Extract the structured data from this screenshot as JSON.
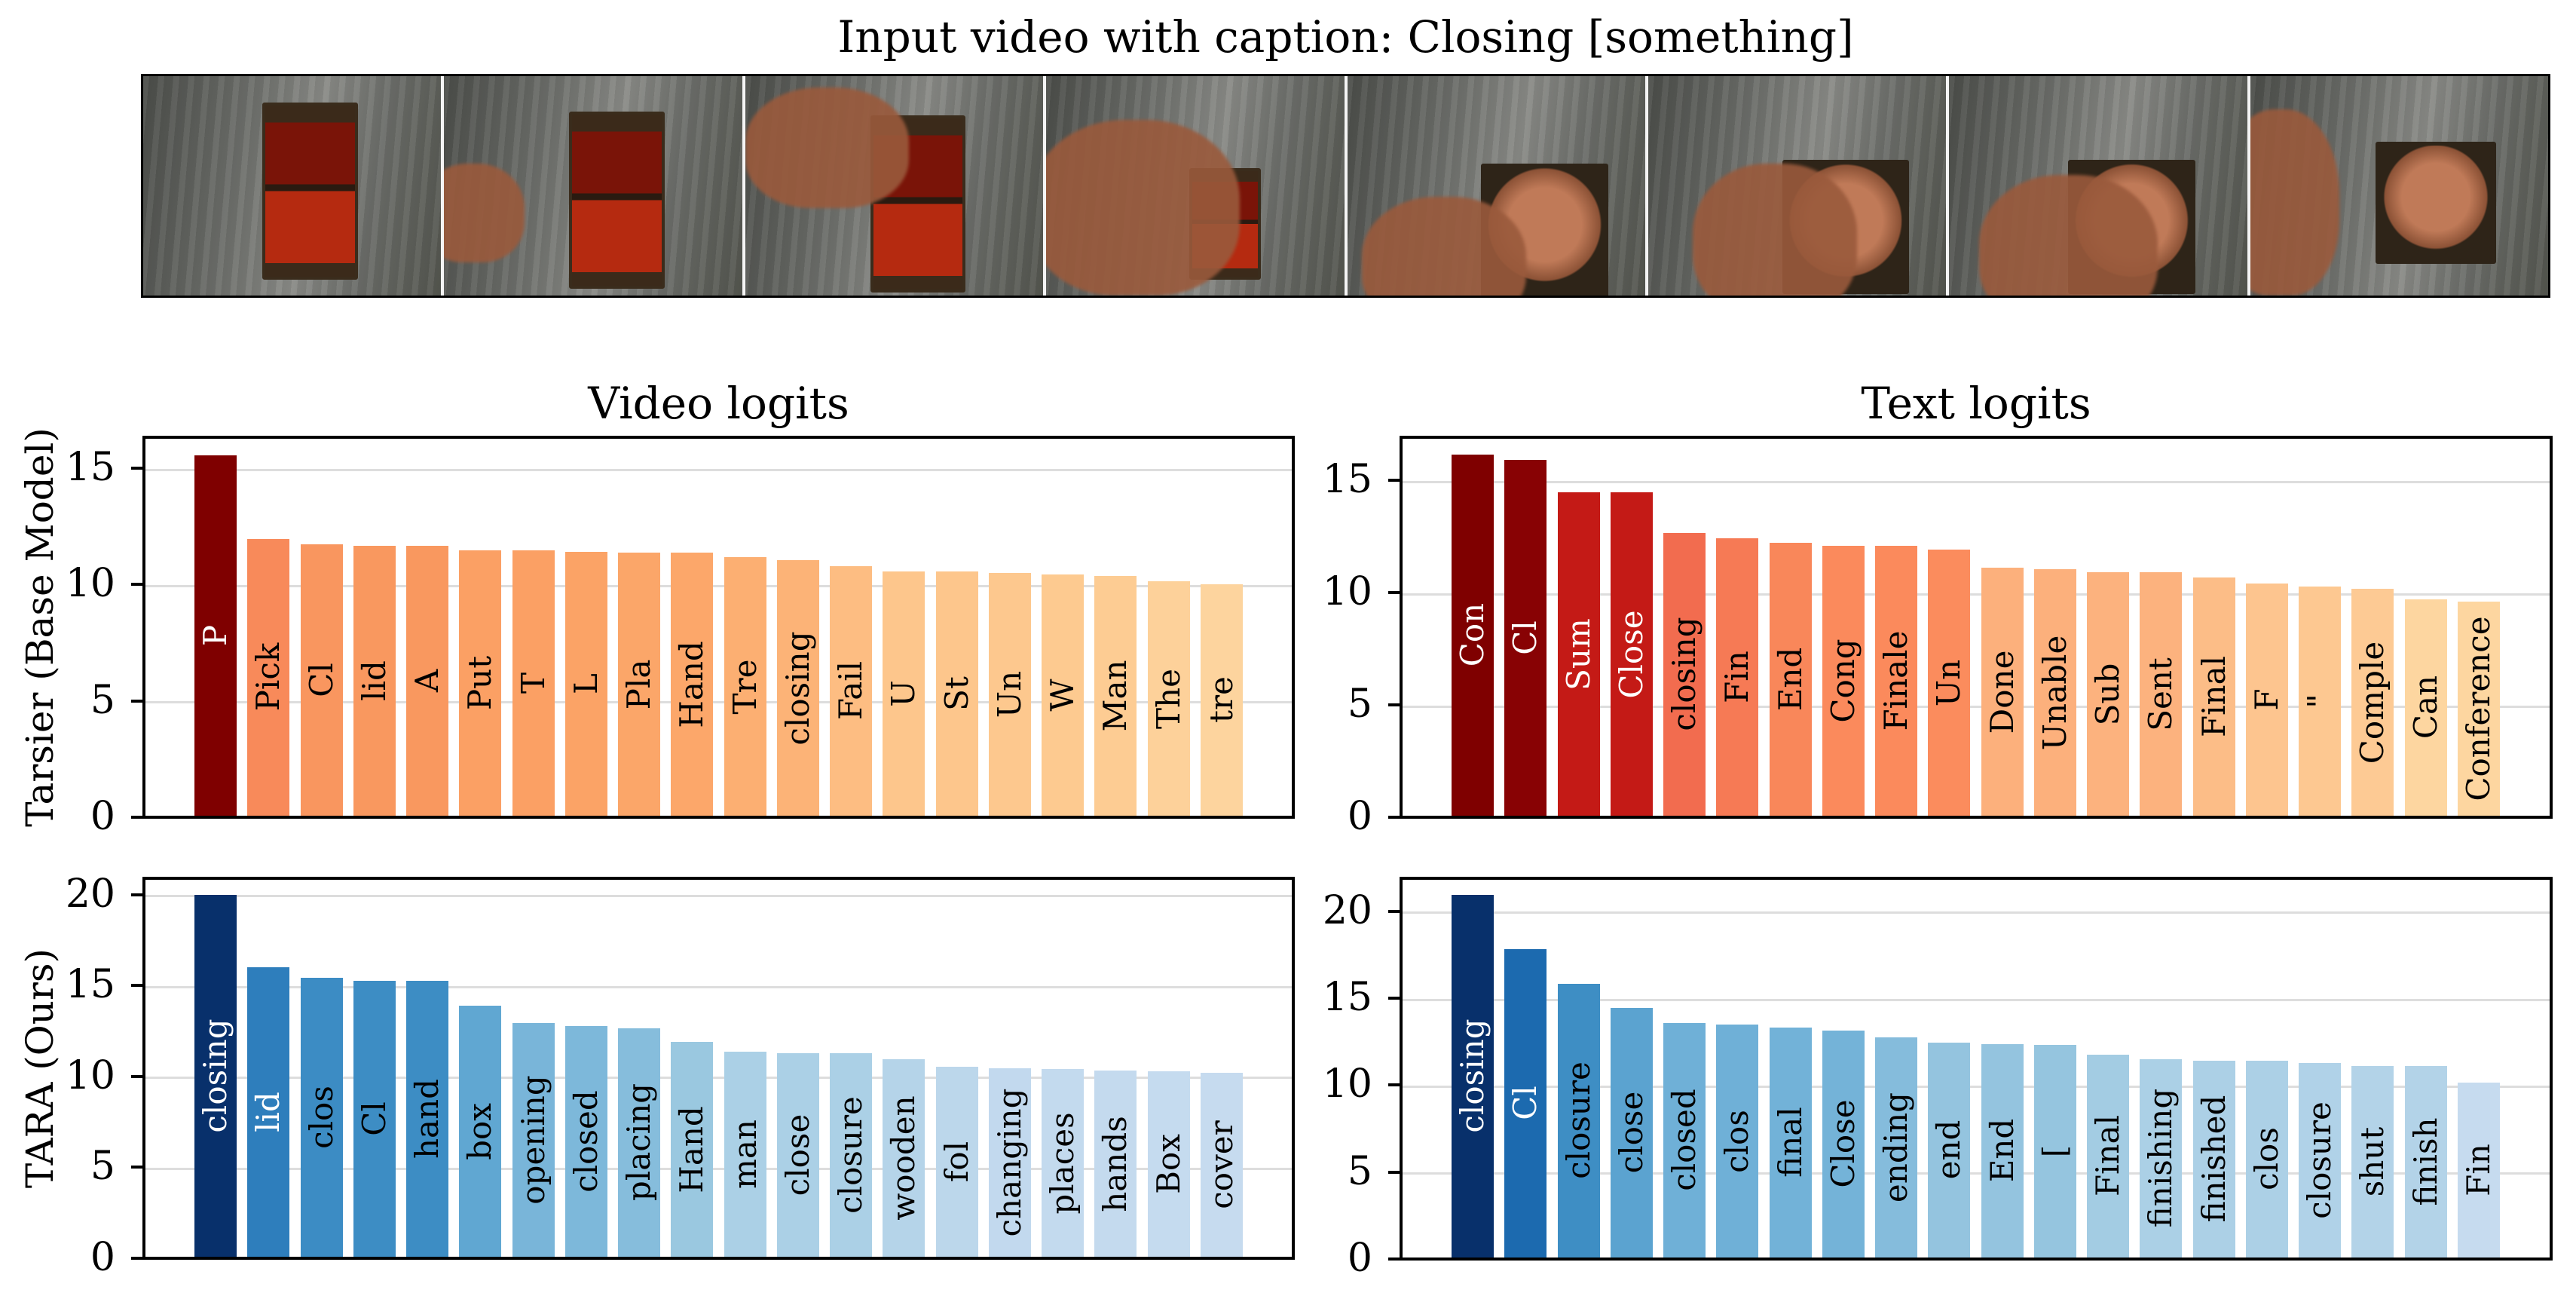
{
  "figure": {
    "title": "Input video with caption: Closing [something]",
    "filmstrip": {
      "frame_count": 8,
      "frames": [
        {
          "label": "frame-1",
          "state": "box open"
        },
        {
          "label": "frame-2",
          "state": "box open, hand entering"
        },
        {
          "label": "frame-3",
          "state": "hand grabbing lid"
        },
        {
          "label": "frame-4",
          "state": "hand closing lid"
        },
        {
          "label": "frame-5",
          "state": "box closed"
        },
        {
          "label": "frame-6",
          "state": "box closed, hand on lid"
        },
        {
          "label": "frame-7",
          "state": "box closed, hand on lid"
        },
        {
          "label": "frame-8",
          "state": "box closed, hand leaving"
        }
      ]
    },
    "column_titles": [
      "Video logits",
      "Text logits"
    ],
    "row_labels": [
      "Tarsier (Base Model)",
      "TARA (Ours)"
    ]
  },
  "chart_data": [
    {
      "type": "bar",
      "id": "tarsier-video",
      "title": "Video logits",
      "ylabel": "Tarsier (Base Model)",
      "xlabel": "",
      "ylim": [
        0,
        16.33
      ],
      "yticks": [
        0,
        5,
        10,
        15
      ],
      "grid": "y",
      "categories": [
        "P",
        "Pick",
        "Cl",
        "lid",
        "A",
        "Put",
        "T",
        "L",
        "Pla",
        "Hand",
        "Tre",
        "closing",
        "Fail",
        "U",
        "St",
        "Un",
        "W",
        "Man",
        "The",
        "tre"
      ],
      "values": [
        15.5,
        11.9,
        11.65,
        11.6,
        11.6,
        11.4,
        11.4,
        11.35,
        11.3,
        11.3,
        11.1,
        10.98,
        10.73,
        10.5,
        10.5,
        10.43,
        10.37,
        10.3,
        10.07,
        9.95
      ],
      "colors": [
        "#7f0000",
        "#f88a5a",
        "#f9965f",
        "#f9985f",
        "#f9985f",
        "#fba064",
        "#fba064",
        "#fba366",
        "#fba669",
        "#fca76a",
        "#fcaf72",
        "#fcb377",
        "#fdbd82",
        "#fdc68c",
        "#fdc68c",
        "#fdc88e",
        "#fdca90",
        "#fdcc93",
        "#fdd19a",
        "#fdd49e"
      ],
      "label_colors": [
        "#ffffff",
        "#000000",
        "#000000",
        "#000000",
        "#000000",
        "#000000",
        "#000000",
        "#000000",
        "#000000",
        "#000000",
        "#000000",
        "#000000",
        "#000000",
        "#000000",
        "#000000",
        "#000000",
        "#000000",
        "#000000",
        "#000000",
        "#000000"
      ]
    },
    {
      "type": "bar",
      "id": "tarsier-text",
      "title": "Text logits",
      "ylabel": "",
      "xlabel": "",
      "ylim": [
        0,
        16.93
      ],
      "yticks": [
        0,
        5,
        10,
        15
      ],
      "grid": "y",
      "categories": [
        "Con",
        "Cl",
        "Sum",
        "Close",
        "closing",
        "Fin",
        "End",
        "Cong",
        "Finale",
        "Un",
        "Done",
        "Unable",
        "Sub",
        "Sent",
        "Final",
        "F",
        "\"",
        "Comple",
        "Can",
        "Conference"
      ],
      "values": [
        16.1,
        15.85,
        14.4,
        14.4,
        12.6,
        12.35,
        12.15,
        12.03,
        12.03,
        11.85,
        11.04,
        10.97,
        10.84,
        10.84,
        10.6,
        10.34,
        10.2,
        10.1,
        9.65,
        9.55
      ],
      "colors": [
        "#7f0000",
        "#880204",
        "#c41a16",
        "#c41a16",
        "#f26c4f",
        "#f67a55",
        "#f9875a",
        "#fb8a5c",
        "#fb8a5c",
        "#fb8c5d",
        "#fcb07c",
        "#fcb07c",
        "#fcb27e",
        "#fcb27e",
        "#fcbd87",
        "#fdc58f",
        "#fdc891",
        "#fdca94",
        "#fdd6a0",
        "#fdd6a0"
      ],
      "label_colors": [
        "#ffffff",
        "#ffffff",
        "#ffffff",
        "#ffffff",
        "#000000",
        "#000000",
        "#000000",
        "#000000",
        "#000000",
        "#000000",
        "#000000",
        "#000000",
        "#000000",
        "#000000",
        "#000000",
        "#000000",
        "#000000",
        "#000000",
        "#000000",
        "#000000"
      ]
    },
    {
      "type": "bar",
      "id": "tara-video",
      "title": "",
      "ylabel": "TARA (Ours)",
      "xlabel": "",
      "ylim": [
        0,
        20.9
      ],
      "yticks": [
        0,
        5,
        10,
        15,
        20
      ],
      "grid": "y",
      "categories": [
        "closing",
        "lid",
        "clos",
        "Cl",
        "hand",
        "box",
        "opening",
        "closed",
        "placing",
        "Hand",
        "man",
        "close",
        "closure",
        "wooden",
        "fol",
        "changing",
        "places",
        "hands",
        "Box",
        "cover"
      ],
      "values": [
        19.9,
        15.93,
        15.35,
        15.19,
        15.19,
        13.8,
        12.87,
        12.68,
        12.57,
        11.8,
        11.26,
        11.18,
        11.18,
        10.85,
        10.47,
        10.36,
        10.31,
        10.23,
        10.19,
        10.11
      ],
      "colors": [
        "#08306b",
        "#2e7ebc",
        "#3c8cc4",
        "#3d8dc4",
        "#3d8dc4",
        "#60a7d2",
        "#79b5d9",
        "#7db8da",
        "#86bddc",
        "#9ac8e0",
        "#abd0e6",
        "#abd0e6",
        "#abd0e6",
        "#b5d4e9",
        "#bcd7eb",
        "#c2d9ee",
        "#c3daee",
        "#c4daee",
        "#c5dbef",
        "#c6dbef"
      ],
      "label_colors": [
        "#ffffff",
        "#ffffff",
        "#000000",
        "#000000",
        "#000000",
        "#000000",
        "#000000",
        "#000000",
        "#000000",
        "#000000",
        "#000000",
        "#000000",
        "#000000",
        "#000000",
        "#000000",
        "#000000",
        "#000000",
        "#000000",
        "#000000",
        "#000000"
      ]
    },
    {
      "type": "bar",
      "id": "tara-text",
      "title": "",
      "ylabel": "",
      "xlabel": "",
      "ylim": [
        0,
        21.9
      ],
      "yticks": [
        0,
        5,
        10,
        15,
        20
      ],
      "grid": "y",
      "categories": [
        "closing",
        "Cl",
        "closure",
        "close",
        "closed",
        "clos",
        "final",
        "Close",
        "ending",
        "end",
        "End",
        "[",
        "Final",
        "finishing",
        "finished",
        "clos",
        "closure",
        "shut",
        "finish",
        "Fin"
      ],
      "values": [
        20.88,
        17.74,
        15.76,
        14.37,
        13.5,
        13.4,
        13.24,
        13.06,
        12.67,
        12.38,
        12.28,
        12.24,
        11.67,
        11.41,
        11.33,
        11.33,
        11.2,
        11.02,
        11.02,
        10.06
      ],
      "colors": [
        "#08306b",
        "#1c6aaf",
        "#3e8ec4",
        "#5ba3d0",
        "#6fb0d7",
        "#6fb0d7",
        "#72b2d8",
        "#74b3d8",
        "#85bcdc",
        "#94c4df",
        "#94c4df",
        "#95c5df",
        "#a3cce3",
        "#abd0e6",
        "#acd0e6",
        "#acd0e6",
        "#b0d2e8",
        "#b3d3e8",
        "#b3d3e8",
        "#c6dbef"
      ],
      "label_colors": [
        "#ffffff",
        "#ffffff",
        "#000000",
        "#000000",
        "#000000",
        "#000000",
        "#000000",
        "#000000",
        "#000000",
        "#000000",
        "#000000",
        "#000000",
        "#000000",
        "#000000",
        "#000000",
        "#000000",
        "#000000",
        "#000000",
        "#000000",
        "#000000"
      ]
    }
  ]
}
